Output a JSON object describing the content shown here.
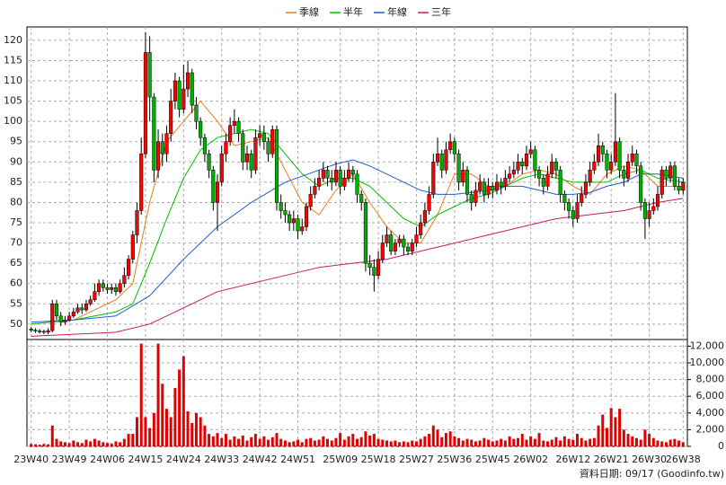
{
  "chart_data": {
    "type": "candlestick",
    "legend": "top",
    "grid": true,
    "footer": "資料日期: 09/17 (Goodinfo.tw)",
    "up_color": "#ff0000",
    "down_color": "#00b000",
    "x": [
      0,
      1,
      2,
      3,
      4,
      5,
      6,
      7,
      8,
      9,
      10,
      11,
      12,
      13,
      14,
      15,
      16,
      17,
      18,
      19,
      20,
      21,
      22,
      23,
      24,
      25,
      26,
      27,
      28,
      29,
      30,
      31,
      32,
      33,
      34,
      35,
      36,
      37,
      38,
      39,
      40,
      41,
      42,
      43,
      44,
      45,
      46,
      47,
      48,
      49,
      50,
      51,
      52,
      53,
      54,
      55,
      56,
      57,
      58,
      59,
      60,
      61,
      62,
      63,
      64,
      65,
      66,
      67,
      68,
      69,
      70,
      71,
      72,
      73,
      74,
      75,
      76,
      77,
      78,
      79,
      80,
      81,
      82,
      83,
      84,
      85,
      86,
      87,
      88,
      89,
      90,
      91,
      92,
      93,
      94,
      95,
      96,
      97,
      98,
      99,
      100,
      101,
      102,
      103,
      104,
      105,
      106,
      107,
      108,
      109,
      110,
      111,
      112,
      113,
      114,
      115,
      116,
      117,
      118,
      119,
      120,
      121,
      122,
      123,
      124,
      125,
      126,
      127,
      128,
      129,
      130,
      131,
      132,
      133,
      134,
      135,
      136,
      137,
      138,
      139,
      140,
      141,
      142,
      143,
      144,
      145,
      146,
      147,
      148,
      149,
      150,
      151,
      152,
      153,
      154
    ],
    "open": [
      48.8,
      48.5,
      48.3,
      48.2,
      48.0,
      48.4,
      55,
      52,
      50.5,
      51,
      52,
      53,
      54,
      53.5,
      55,
      56,
      58,
      60,
      59,
      58.5,
      59,
      58,
      60,
      62,
      66,
      72,
      78,
      92,
      117,
      106,
      88,
      95,
      92,
      97,
      105,
      110,
      103,
      108,
      112,
      104,
      100,
      96,
      92,
      88,
      80,
      85,
      92,
      95,
      99,
      100,
      97,
      90,
      92,
      88,
      96,
      97,
      95,
      92,
      98,
      80,
      78,
      77,
      75,
      76,
      73,
      74,
      79,
      82,
      84,
      86,
      88,
      86,
      85,
      88,
      84,
      86,
      88,
      87,
      82,
      80,
      65,
      64,
      62,
      66,
      70,
      72,
      68,
      70,
      71,
      69,
      68,
      70,
      72,
      75,
      78,
      82,
      90,
      92,
      88,
      93,
      95,
      92,
      85,
      88,
      82,
      80,
      83,
      85,
      82,
      84,
      83,
      85,
      84,
      86,
      87,
      88,
      90,
      89,
      92,
      93,
      88,
      86,
      84,
      87,
      90,
      88,
      82,
      80,
      78,
      76,
      80,
      82,
      85,
      88,
      90,
      94,
      92,
      88,
      90,
      95,
      88,
      86,
      90,
      92,
      89,
      80,
      76,
      78,
      79,
      82,
      88,
      86,
      89,
      84,
      83
    ],
    "high": [
      49.3,
      49.0,
      48.8,
      48.6,
      49.0,
      56,
      56,
      53,
      52,
      53,
      54,
      55,
      55,
      56,
      57,
      60,
      61,
      61,
      60,
      60,
      60,
      61,
      64,
      67,
      73,
      80,
      96,
      122,
      121,
      107,
      98,
      97,
      99,
      108,
      112,
      111,
      114,
      115,
      113,
      106,
      101,
      97,
      93,
      89,
      87,
      94,
      97,
      101,
      103,
      101,
      98,
      94,
      93,
      98,
      99,
      99,
      96,
      99,
      99,
      82,
      80,
      78,
      78,
      77,
      76,
      80,
      84,
      86,
      88,
      90,
      89,
      88,
      90,
      89,
      88,
      90,
      89,
      88,
      83,
      81,
      67,
      66,
      68,
      72,
      74,
      73,
      71,
      72,
      72,
      70,
      71,
      74,
      77,
      80,
      84,
      92,
      96,
      93,
      95,
      97,
      96,
      93,
      90,
      89,
      83,
      85,
      87,
      86,
      86,
      85,
      87,
      86,
      88,
      89,
      90,
      92,
      91,
      94,
      95,
      94,
      89,
      87,
      89,
      92,
      91,
      89,
      83,
      81,
      79,
      82,
      84,
      87,
      90,
      92,
      97,
      95,
      93,
      92,
      107,
      96,
      89,
      92,
      94,
      93,
      90,
      81,
      80,
      81,
      84,
      89,
      89,
      90,
      90,
      86,
      86
    ],
    "low": [
      48.0,
      47.8,
      47.7,
      47.5,
      47.5,
      48,
      51,
      49.5,
      49.8,
      50.5,
      51.5,
      52.5,
      52.5,
      53,
      54.5,
      55.5,
      57,
      58,
      57.5,
      57.5,
      57,
      57.5,
      59,
      61,
      65,
      70,
      77,
      91,
      100,
      85,
      86,
      89,
      90,
      95,
      103,
      101,
      102,
      106,
      102,
      98,
      94,
      90,
      86,
      78,
      73,
      84,
      90,
      94,
      97,
      95,
      88,
      88,
      86,
      87,
      94,
      93,
      90,
      91,
      78,
      76,
      75,
      73,
      73,
      71,
      72,
      73,
      78,
      81,
      83,
      85,
      84,
      83,
      84,
      82,
      83,
      85,
      85,
      80,
      78,
      63,
      62,
      58,
      61,
      65,
      69,
      67,
      67,
      69,
      67,
      67,
      67,
      69,
      71,
      74,
      77,
      81,
      89,
      86,
      87,
      92,
      90,
      83,
      84,
      80,
      78,
      79,
      82,
      80,
      81,
      81,
      82,
      82,
      83,
      85,
      86,
      87,
      87,
      88,
      91,
      86,
      84,
      82,
      83,
      86,
      86,
      80,
      78,
      76,
      74,
      75,
      79,
      81,
      84,
      87,
      89,
      90,
      86,
      87,
      89,
      86,
      84,
      85,
      89,
      87,
      78,
      71,
      74,
      77,
      78,
      81,
      84,
      85,
      83,
      82,
      82
    ],
    "close": [
      48.5,
      48.3,
      48.2,
      48.0,
      48.4,
      55,
      52,
      50.5,
      51,
      52,
      53,
      54,
      53.5,
      55,
      56,
      58,
      60,
      59,
      58.5,
      59,
      58,
      60,
      62,
      66,
      72,
      78,
      92,
      117,
      106,
      88,
      95,
      92,
      97,
      105,
      110,
      103,
      108,
      112,
      104,
      100,
      96,
      92,
      88,
      80,
      85,
      92,
      95,
      99,
      100,
      97,
      90,
      92,
      88,
      96,
      97,
      95,
      92,
      98,
      80,
      78,
      77,
      75,
      76,
      73,
      74,
      79,
      82,
      84,
      86,
      88,
      86,
      85,
      88,
      84,
      86,
      88,
      87,
      82,
      80,
      65,
      64,
      62,
      66,
      70,
      72,
      68,
      70,
      71,
      69,
      68,
      70,
      72,
      75,
      78,
      82,
      90,
      92,
      88,
      93,
      95,
      92,
      85,
      88,
      82,
      80,
      83,
      85,
      82,
      84,
      83,
      85,
      84,
      86,
      87,
      88,
      90,
      89,
      92,
      93,
      88,
      86,
      84,
      87,
      90,
      88,
      82,
      80,
      78,
      76,
      80,
      82,
      85,
      88,
      90,
      94,
      92,
      88,
      90,
      95,
      88,
      86,
      90,
      92,
      89,
      80,
      76,
      78,
      79,
      82,
      88,
      86,
      89,
      84,
      83,
      85
    ],
    "volume": {
      "color": "#e00000",
      "axis": "y2",
      "values": [
        300,
        250,
        200,
        300,
        250,
        2500,
        900,
        600,
        500,
        400,
        700,
        500,
        400,
        800,
        600,
        900,
        700,
        500,
        400,
        350,
        600,
        500,
        900,
        1500,
        1500,
        3500,
        12300,
        3500,
        2200,
        4000,
        12300,
        7500,
        4500,
        3500,
        7000,
        9200,
        10800,
        4200,
        2800,
        4000,
        3500,
        2500,
        1500,
        1200,
        1600,
        1000,
        1500,
        800,
        1200,
        900,
        1300,
        700,
        1100,
        1500,
        900,
        1200,
        800,
        1100,
        1600,
        900,
        700,
        500,
        600,
        800,
        500,
        900,
        1000,
        700,
        800,
        1200,
        900,
        700,
        1000,
        1600,
        800,
        1200,
        1500,
        900,
        1100,
        1800,
        1300,
        1500,
        900,
        800,
        700,
        600,
        700,
        500,
        600,
        500,
        700,
        600,
        900,
        1200,
        1500,
        2500,
        2000,
        1100,
        1600,
        1800,
        1200,
        1000,
        700,
        900,
        800,
        600,
        700,
        1000,
        800,
        600,
        700,
        900,
        700,
        1200,
        900,
        1000,
        1500,
        800,
        1200,
        900,
        1600,
        700,
        600,
        800,
        1100,
        700,
        1200,
        900,
        800,
        1500,
        1000,
        700,
        900,
        1000,
        2500,
        3800,
        2200,
        4600,
        3500,
        4500,
        2000,
        1500,
        1200,
        1000,
        800,
        2000,
        1500,
        1000,
        700,
        600,
        500,
        800,
        900,
        700,
        500
      ]
    },
    "series": [
      {
        "name": "季線",
        "color": "#e87d1e",
        "x": [
          0,
          10,
          20,
          24,
          28,
          32,
          36,
          40,
          44,
          48,
          52,
          56,
          60,
          64,
          68,
          72,
          76,
          80,
          84,
          88,
          92,
          96,
          100,
          104,
          108,
          112,
          116,
          120,
          124,
          128,
          132,
          136,
          140,
          144,
          148,
          154
        ],
        "values": [
          50,
          51,
          56,
          60,
          80,
          95,
          100,
          105,
          100,
          94,
          95,
          96,
          88,
          80,
          77,
          83,
          87,
          80,
          74,
          70,
          70,
          77,
          87,
          87,
          84,
          84,
          87,
          88,
          87,
          84,
          82,
          87,
          89,
          88,
          84,
          84
        ]
      },
      {
        "name": "半年",
        "color": "#00c000",
        "x": [
          0,
          10,
          20,
          24,
          28,
          32,
          36,
          40,
          44,
          48,
          52,
          56,
          60,
          64,
          68,
          72,
          76,
          80,
          84,
          88,
          92,
          96,
          100,
          104,
          108,
          112,
          116,
          120,
          124,
          128,
          132,
          136,
          140,
          144,
          148,
          154
        ],
        "values": [
          50,
          51,
          53,
          55,
          65,
          76,
          86,
          93,
          96,
          97,
          98,
          97,
          92,
          87,
          84,
          86,
          86,
          84,
          80,
          76,
          74,
          77,
          79,
          81,
          82,
          84,
          86,
          87,
          86,
          85,
          85,
          85,
          87,
          88,
          86,
          85
        ]
      },
      {
        "name": "年線",
        "color": "#1f5fd0",
        "x": [
          0,
          10,
          20,
          28,
          36,
          44,
          52,
          60,
          68,
          72,
          76,
          80,
          84,
          88,
          92,
          96,
          100,
          104,
          108,
          112,
          116,
          120,
          124,
          128,
          132,
          136,
          140,
          144,
          148,
          154
        ],
        "values": [
          50.5,
          51,
          52,
          57,
          66,
          74,
          80,
          85,
          88,
          89.5,
          90.5,
          89,
          87,
          85,
          83,
          82,
          82,
          82.5,
          83,
          84,
          84,
          83,
          82,
          82,
          82.5,
          84,
          85,
          87,
          87,
          86
        ]
      },
      {
        "name": "三年",
        "color": "#c8186a",
        "x": [
          0,
          20,
          28,
          36,
          44,
          52,
          60,
          68,
          76,
          84,
          92,
          100,
          108,
          116,
          124,
          132,
          140,
          148,
          154
        ],
        "values": [
          47,
          48,
          50,
          54,
          58,
          60,
          62,
          64,
          65,
          66,
          68,
          70,
          72,
          74,
          76,
          77,
          78,
          80,
          81
        ]
      }
    ],
    "xlim": [
      -1,
      155
    ],
    "xticks": [
      {
        "value": 0,
        "label": "23W40"
      },
      {
        "value": 9,
        "label": "23W49"
      },
      {
        "value": 18,
        "label": "24W06"
      },
      {
        "value": 27,
        "label": "24W15"
      },
      {
        "value": 36,
        "label": "24W24"
      },
      {
        "value": 45,
        "label": "24W33"
      },
      {
        "value": 54,
        "label": "24W42"
      },
      {
        "value": 63,
        "label": "24W51"
      },
      {
        "value": 73,
        "label": "25W09"
      },
      {
        "value": 82,
        "label": "25W18"
      },
      {
        "value": 91,
        "label": "25W27"
      },
      {
        "value": 100,
        "label": "25W36"
      },
      {
        "value": 109,
        "label": "25W45"
      },
      {
        "value": 118,
        "label": "26W02"
      },
      {
        "value": 128,
        "label": "26W12"
      },
      {
        "value": 137,
        "label": "26W21"
      },
      {
        "value": 146,
        "label": "26W30"
      },
      {
        "value": 154,
        "label": "26W38"
      }
    ],
    "ylim": [
      46.2,
      123.3
    ],
    "yticks": [
      50,
      55,
      60,
      65,
      70,
      75,
      80,
      85,
      90,
      95,
      100,
      105,
      110,
      115,
      120
    ],
    "y2lim": [
      0,
      12800
    ],
    "y2ticks": [
      0,
      {
        "value": 2000,
        "label": "2,000"
      },
      {
        "value": 4000,
        "label": "4,000"
      },
      {
        "value": 6000,
        "label": "6,000"
      },
      {
        "value": 8000,
        "label": "8,000"
      },
      {
        "value": 10000,
        "label": "10,000"
      },
      {
        "value": 12000,
        "label": "12,000"
      }
    ]
  }
}
